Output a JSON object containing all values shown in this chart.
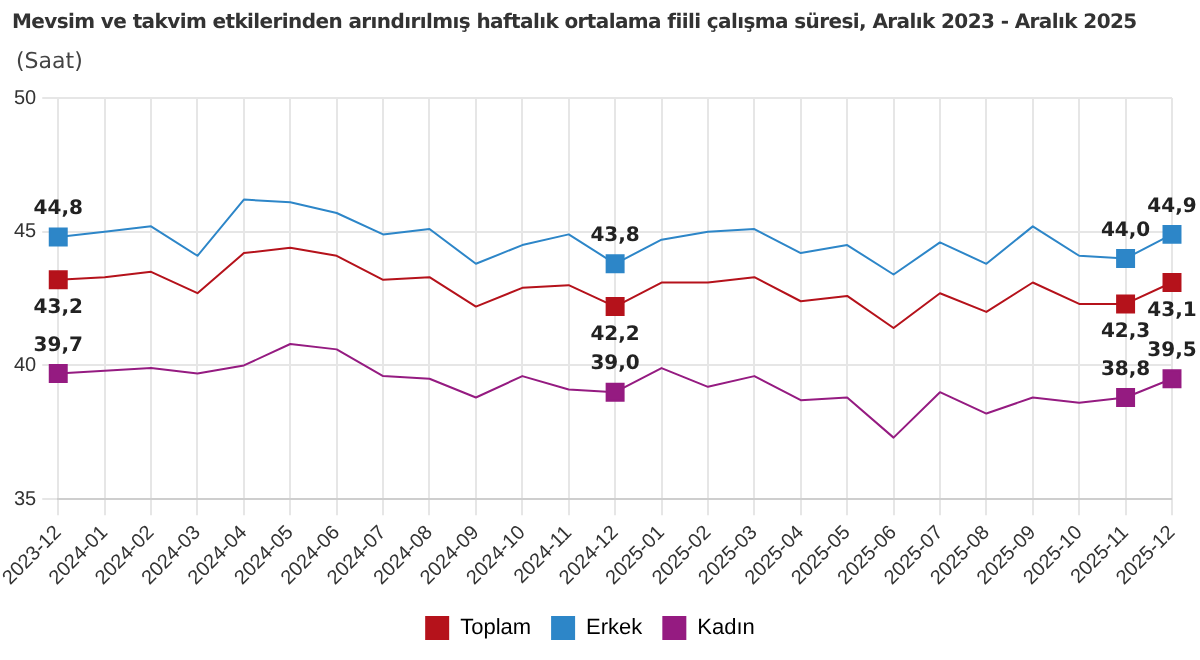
{
  "chart_data": {
    "type": "line",
    "title": "Mevsim ve takvim etkilerinden arındırılmış haftalık ortalama fiili çalışma süresi, Aralık 2023 - Aralık 2025",
    "subtitle": "(Saat)",
    "categories": [
      "2023-12",
      "2024-01",
      "2024-02",
      "2024-03",
      "2024-04",
      "2024-05",
      "2024-06",
      "2024-07",
      "2024-08",
      "2024-09",
      "2024-10",
      "2024-11",
      "2024-12",
      "2025-01",
      "2025-02",
      "2025-03",
      "2025-04",
      "2025-05",
      "2025-06",
      "2025-07",
      "2025-08",
      "2025-09",
      "2025-10",
      "2025-11",
      "2025-12"
    ],
    "series": [
      {
        "name": "Toplam",
        "color": "#b5121b",
        "values": [
          43.2,
          43.3,
          43.5,
          42.7,
          44.2,
          44.4,
          44.1,
          43.2,
          43.3,
          42.2,
          42.9,
          43.0,
          42.2,
          43.1,
          43.1,
          43.3,
          42.4,
          42.6,
          41.4,
          42.7,
          42.0,
          43.1,
          42.3,
          42.3,
          43.1
        ],
        "value_labels": [
          "43,2",
          null,
          null,
          null,
          null,
          null,
          null,
          null,
          null,
          null,
          null,
          null,
          "42,2",
          null,
          null,
          null,
          null,
          null,
          null,
          null,
          null,
          null,
          null,
          "42,3",
          "43,1"
        ]
      },
      {
        "name": "Erkek",
        "color": "#2d86c8",
        "values": [
          44.8,
          45.0,
          45.2,
          44.1,
          46.2,
          46.1,
          45.7,
          44.9,
          45.1,
          43.8,
          44.5,
          44.9,
          43.8,
          44.7,
          45.0,
          45.1,
          44.2,
          44.5,
          43.4,
          44.6,
          43.8,
          45.2,
          44.1,
          44.0,
          44.9
        ],
        "value_labels": [
          "44,8",
          null,
          null,
          null,
          null,
          null,
          null,
          null,
          null,
          null,
          null,
          null,
          "43,8",
          null,
          null,
          null,
          null,
          null,
          null,
          null,
          null,
          null,
          null,
          "44,0",
          "44,9"
        ]
      },
      {
        "name": "Kadın",
        "color": "#951b81",
        "values": [
          39.7,
          39.8,
          39.9,
          39.7,
          40.0,
          40.8,
          40.6,
          39.6,
          39.5,
          38.8,
          39.6,
          39.1,
          39.0,
          39.9,
          39.2,
          39.6,
          38.7,
          38.8,
          37.3,
          39.0,
          38.2,
          38.8,
          38.6,
          38.8,
          39.5
        ],
        "value_labels": [
          "39,7",
          null,
          null,
          null,
          null,
          null,
          null,
          null,
          null,
          null,
          null,
          null,
          "39,0",
          null,
          null,
          null,
          null,
          null,
          null,
          null,
          null,
          null,
          null,
          "38,8",
          "39,5"
        ]
      }
    ],
    "ylim": [
      35,
      50
    ],
    "yticks": [
      35,
      40,
      45,
      50
    ],
    "grid": true,
    "legend": "bottom",
    "line_style": "solid"
  }
}
